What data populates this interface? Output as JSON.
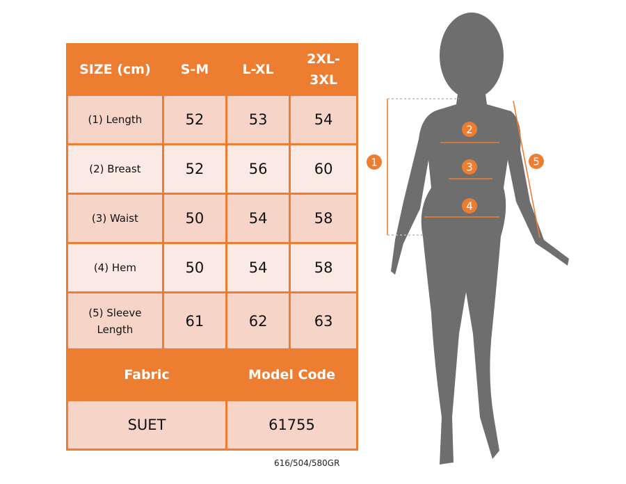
{
  "table": {
    "header": [
      "SIZE (cm)",
      "S-M",
      "L-XL",
      "2XL-3XL"
    ],
    "rows": [
      {
        "label": "(1) Length",
        "values": [
          "52",
          "53",
          "54"
        ]
      },
      {
        "label": "(2) Breast",
        "values": [
          "52",
          "56",
          "60"
        ]
      },
      {
        "label": "(3) Waist",
        "values": [
          "50",
          "54",
          "58"
        ]
      },
      {
        "label": "(4) Hem",
        "values": [
          "50",
          "54",
          "58"
        ]
      },
      {
        "label": "(5) Sleeve Length",
        "values": [
          "61",
          "62",
          "63"
        ]
      }
    ],
    "fabric_label": "Fabric",
    "model_code_label": "Model Code",
    "fabric": "SUET",
    "model_code": "61755"
  },
  "weight_note": "616/504/580GR",
  "figure": {
    "markers": [
      "1",
      "2",
      "3",
      "4",
      "5"
    ]
  },
  "colors": {
    "accent": "#ed7d31",
    "row_dark": "#f7d4c8",
    "row_light": "#fbe9e3",
    "silhouette": "#6e6e6e"
  }
}
